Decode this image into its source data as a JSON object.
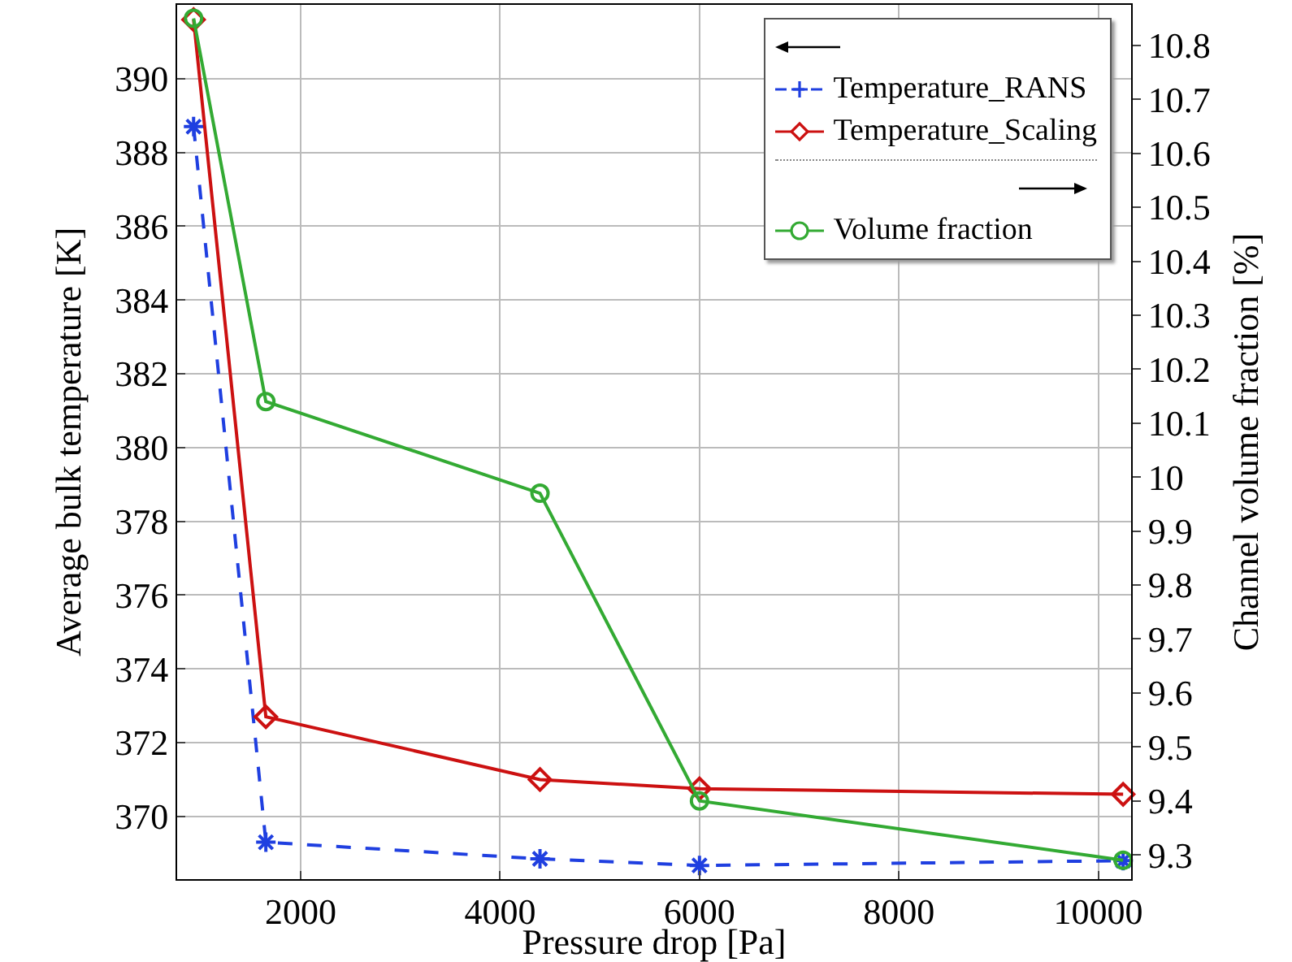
{
  "chart_data": {
    "type": "line",
    "xlabel": "Pressure drop [Pa]",
    "ylabel": "Average bulk temperature [K]",
    "y2label": "Channel volume fraction [%]",
    "x": [
      925,
      1650,
      4400,
      6000,
      10250
    ],
    "series": [
      {
        "name": "Temperature_RANS",
        "color": "#1f3fe0",
        "values": [
          388.7,
          369.3,
          368.85,
          368.67,
          368.8
        ],
        "marker": "cross",
        "line_style": "dashed"
      },
      {
        "name": "Temperature_Scaling",
        "color": "#cc1111",
        "values": [
          391.6,
          372.7,
          371.0,
          370.75,
          370.6
        ],
        "marker": "diamond",
        "line_style": "solid"
      },
      {
        "name": "Volume fraction",
        "color": "#33aa33",
        "values": [
          10.85,
          10.14,
          9.97,
          9.4,
          9.29
        ],
        "marker": "circle",
        "line_style": "solid",
        "axis": "y2"
      }
    ],
    "xlim": [
      760,
      10330
    ],
    "xticks": [
      2000,
      4000,
      6000,
      8000,
      10000
    ],
    "ylim": [
      368.3,
      392
    ],
    "yticks": [
      370,
      372,
      374,
      376,
      378,
      380,
      382,
      384,
      386,
      388,
      390
    ],
    "y2lim": [
      9.255,
      10.875
    ],
    "y2ticks": [
      9.3,
      9.4,
      9.5,
      9.6,
      9.7,
      9.8,
      9.9,
      10,
      10.1,
      10.2,
      10.3,
      10.4,
      10.5,
      10.6,
      10.7,
      10.8
    ],
    "grid": true,
    "legend": "top right"
  }
}
